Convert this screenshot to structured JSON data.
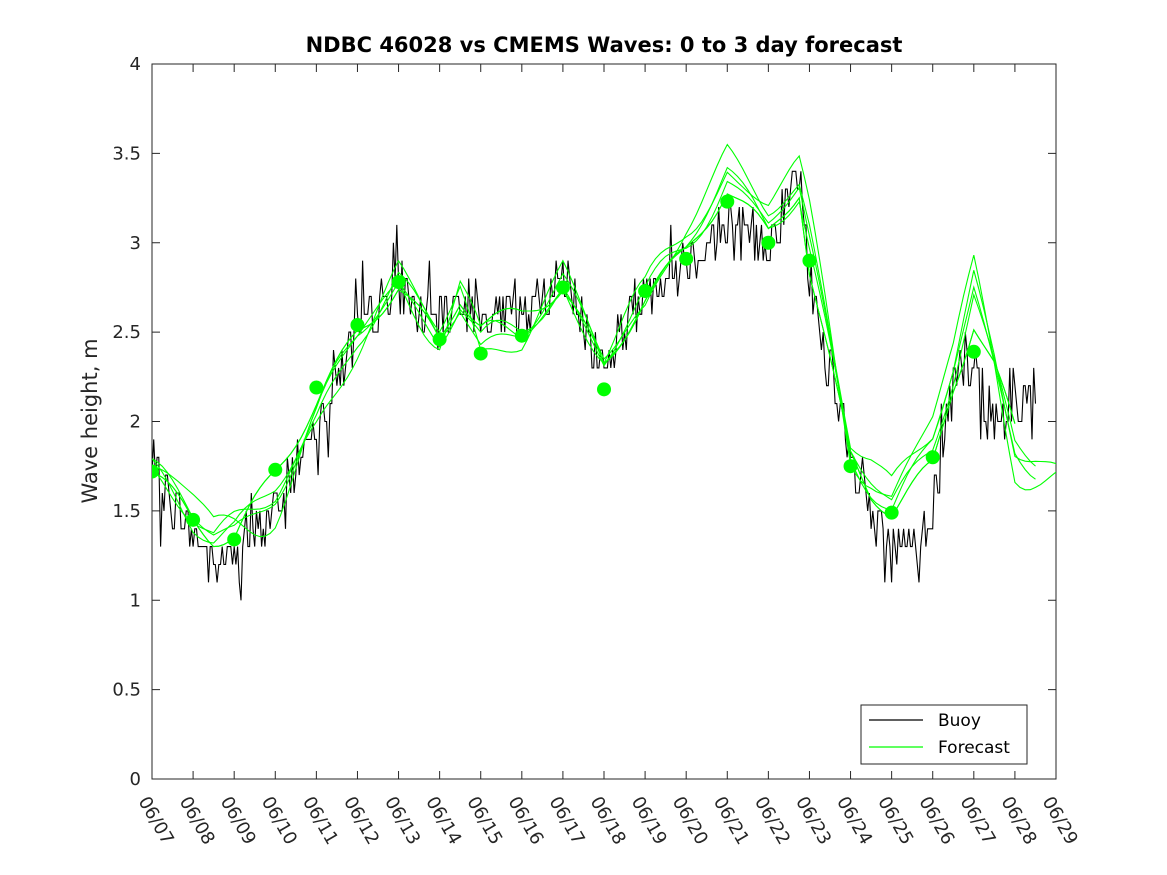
{
  "chart_data": {
    "type": "line",
    "title": "NDBC 46028 vs CMEMS Waves: 0 to 3 day forecast",
    "xlabel": "",
    "ylabel": "Wave height, m",
    "xlim": [
      "06/07",
      "06/29"
    ],
    "ylim": [
      0,
      4
    ],
    "x_tick_labels": [
      "06/07",
      "06/08",
      "06/09",
      "06/10",
      "06/11",
      "06/12",
      "06/13",
      "06/14",
      "06/15",
      "06/16",
      "06/17",
      "06/18",
      "06/19",
      "06/20",
      "06/21",
      "06/22",
      "06/23",
      "06/24",
      "06/25",
      "06/26",
      "06/27",
      "06/28",
      "06/29"
    ],
    "y_tick_labels": [
      "0",
      "0.5",
      "1",
      "1.5",
      "2",
      "2.5",
      "3",
      "3.5",
      "4"
    ],
    "y_ticks": [
      0,
      0.5,
      1,
      1.5,
      2,
      2.5,
      3,
      3.5,
      4
    ],
    "grid": false,
    "legend": {
      "position": "bottom-right",
      "entries": [
        "Buoy",
        "Forecast"
      ]
    },
    "colors": {
      "buoy": "#000000",
      "forecast": "#00ff00",
      "axes": "#262626"
    },
    "buoy_series": {
      "name": "Buoy",
      "anchors": [
        [
          "06/07",
          1.7
        ],
        [
          "06/08",
          1.4
        ],
        [
          "06/08 12:00",
          1.2
        ],
        [
          "06/09",
          1.25
        ],
        [
          "06/10",
          1.5
        ],
        [
          "06/11",
          2.0
        ],
        [
          "06/12",
          2.5
        ],
        [
          "06/13",
          2.75
        ],
        [
          "06/14",
          2.55
        ],
        [
          "06/14 12:00",
          2.7
        ],
        [
          "06/15",
          2.6
        ],
        [
          "06/16",
          2.6
        ],
        [
          "06/17",
          2.8
        ],
        [
          "06/18",
          2.3
        ],
        [
          "06/19",
          2.75
        ],
        [
          "06/20",
          2.9
        ],
        [
          "06/21",
          3.1
        ],
        [
          "06/22",
          3.0
        ],
        [
          "06/22 18:00",
          3.35
        ],
        [
          "06/23",
          2.8
        ],
        [
          "06/24",
          1.75
        ],
        [
          "06/24 12:00",
          1.5
        ],
        [
          "06/25",
          1.3
        ],
        [
          "06/25 12:00",
          1.28
        ],
        [
          "06/26",
          1.5
        ],
        [
          "06/26 12:00",
          2.2
        ],
        [
          "06/27",
          2.3
        ],
        [
          "06/27 12:00",
          2.0
        ],
        [
          "06/28",
          2.1
        ],
        [
          "06/28 12:00",
          2.2
        ]
      ],
      "amplitude": 0.14,
      "max": 3.7
    },
    "forecast_series": [
      {
        "offset": 0,
        "values": [
          [
            "06/07",
            1.72
          ],
          [
            "06/08",
            1.45
          ],
          [
            "06/08 12:00",
            1.35
          ],
          [
            "06/09",
            1.35
          ],
          [
            "06/10",
            1.72
          ],
          [
            "06/11",
            2.1
          ],
          [
            "06/12",
            2.5
          ],
          [
            "06/13",
            2.75
          ],
          [
            "06/14",
            2.45
          ],
          [
            "06/14 12:00",
            2.7
          ],
          [
            "06/15",
            2.55
          ],
          [
            "06/16",
            2.6
          ],
          [
            "06/17",
            2.75
          ],
          [
            "06/18",
            2.3
          ],
          [
            "06/19",
            2.7
          ],
          [
            "06/20",
            2.95
          ],
          [
            "06/21",
            3.3
          ],
          [
            "06/22",
            3.05
          ],
          [
            "06/22 18:00",
            3.3
          ],
          [
            "06/23",
            2.85
          ],
          [
            "06/24",
            1.8
          ],
          [
            "06/24 12:00",
            1.6
          ],
          [
            "06/25",
            1.5
          ],
          [
            "06/26",
            1.75
          ],
          [
            "06/26 12:00",
            2.2
          ],
          [
            "06/27",
            2.55
          ],
          [
            "06/27 12:00",
            2.3
          ],
          [
            "06/28",
            1.95
          ]
        ]
      },
      {
        "offset": 0.08,
        "values": [
          [
            "06/07",
            1.75
          ],
          [
            "06/08",
            1.42
          ],
          [
            "06/08 12:00",
            1.35
          ],
          [
            "06/09",
            1.4
          ],
          [
            "06/10",
            1.65
          ],
          [
            "06/11",
            2.0
          ],
          [
            "06/12",
            2.45
          ],
          [
            "06/13",
            2.8
          ],
          [
            "06/14",
            2.5
          ],
          [
            "06/14 12:00",
            2.65
          ],
          [
            "06/15",
            2.4
          ],
          [
            "06/16",
            2.5
          ],
          [
            "06/17",
            2.8
          ],
          [
            "06/18",
            2.35
          ],
          [
            "06/19",
            2.65
          ],
          [
            "06/20",
            3.0
          ],
          [
            "06/21",
            3.4
          ],
          [
            "06/22",
            3.1
          ],
          [
            "06/22 18:00",
            3.25
          ],
          [
            "06/23",
            2.95
          ],
          [
            "06/24",
            1.85
          ],
          [
            "06/24 12:00",
            1.7
          ],
          [
            "06/25",
            1.55
          ],
          [
            "06/26",
            1.85
          ],
          [
            "06/26 12:00",
            2.25
          ],
          [
            "06/27",
            2.7
          ],
          [
            "06/27 12:00",
            2.3
          ],
          [
            "06/28",
            1.9
          ],
          [
            "06/28 12:00",
            1.8
          ]
        ]
      },
      {
        "offset": 0.16,
        "values": [
          [
            "06/07",
            1.7
          ],
          [
            "06/08",
            1.48
          ],
          [
            "06/08 12:00",
            1.36
          ],
          [
            "06/09",
            1.45
          ],
          [
            "06/10",
            1.6
          ],
          [
            "06/11",
            1.95
          ],
          [
            "06/12",
            2.4
          ],
          [
            "06/13",
            2.85
          ],
          [
            "06/14",
            2.55
          ],
          [
            "06/14 12:00",
            2.75
          ],
          [
            "06/15",
            2.35
          ],
          [
            "06/16",
            2.45
          ],
          [
            "06/17",
            2.85
          ],
          [
            "06/18",
            2.4
          ],
          [
            "06/19",
            2.6
          ],
          [
            "06/20",
            3.1
          ],
          [
            "06/21",
            3.5
          ],
          [
            "06/22",
            3.2
          ],
          [
            "06/22 18:00",
            3.3
          ],
          [
            "06/23",
            3.05
          ],
          [
            "06/24",
            1.9
          ],
          [
            "06/24 12:00",
            1.8
          ],
          [
            "06/25",
            1.65
          ],
          [
            "06/26",
            1.95
          ],
          [
            "06/26 12:00",
            2.3
          ],
          [
            "06/27",
            2.8
          ],
          [
            "06/27 12:00",
            2.35
          ],
          [
            "06/28",
            1.85
          ],
          [
            "06/28 12:00",
            1.8
          ],
          [
            "06/29",
            1.72
          ]
        ]
      }
    ],
    "daily_markers": {
      "name": "Forecast",
      "x": [
        "06/07",
        "06/08",
        "06/09",
        "06/10",
        "06/11",
        "06/12",
        "06/13",
        "06/14",
        "06/15",
        "06/16",
        "06/17",
        "06/18",
        "06/19",
        "06/20",
        "06/21",
        "06/22",
        "06/23",
        "06/24",
        "06/25",
        "06/26",
        "06/27"
      ],
      "y": [
        1.72,
        1.45,
        1.34,
        1.73,
        2.19,
        2.54,
        2.78,
        2.46,
        2.38,
        2.48,
        2.75,
        2.18,
        2.73,
        2.91,
        3.23,
        3.0,
        2.9,
        1.75,
        1.49,
        1.8,
        2.39
      ]
    }
  }
}
